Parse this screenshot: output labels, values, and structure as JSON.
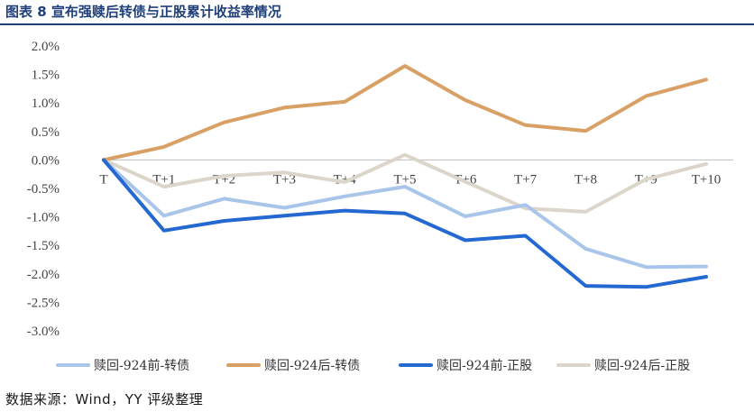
{
  "page": {
    "title": "图表 8 宣布强赎后转债与正股累计收益率情况",
    "source": "数据来源：Wind，YY 评级整理"
  },
  "chart_data": {
    "type": "line",
    "title": "",
    "xlabel": "",
    "ylabel": "",
    "categories": [
      "T",
      "T+1",
      "T+2",
      "T+3",
      "T+4",
      "T+5",
      "T+6",
      "T+7",
      "T+8",
      "T+9",
      "T+10"
    ],
    "y_ticks": [
      "2.0%",
      "1.5%",
      "1.0%",
      "0.5%",
      "0.0%",
      "-0.5%",
      "-1.0%",
      "-1.5%",
      "-2.0%",
      "-2.5%",
      "-3.0%"
    ],
    "ylim": [
      -3.0,
      2.0
    ],
    "y_unit": "%",
    "grid": false,
    "legend_position": "bottom",
    "series": [
      {
        "name": "赎回-924前-转债",
        "color": "#a9c5ea",
        "values": [
          0,
          -0.98,
          -0.68,
          -0.84,
          -0.64,
          -0.47,
          -0.99,
          -0.79,
          -1.56,
          -1.88,
          -1.87
        ]
      },
      {
        "name": "赎回-924后-转债",
        "color": "#d9a066",
        "values": [
          0,
          0.23,
          0.66,
          0.92,
          1.02,
          1.65,
          1.05,
          0.61,
          0.51,
          1.12,
          1.41
        ]
      },
      {
        "name": "赎回-924前-正股",
        "color": "#2469d1",
        "values": [
          0,
          -1.24,
          -1.07,
          -0.98,
          -0.89,
          -0.94,
          -1.41,
          -1.33,
          -2.21,
          -2.23,
          -2.05
        ]
      },
      {
        "name": "赎回-924后-正股",
        "color": "#dcd5cc",
        "values": [
          0,
          -0.47,
          -0.28,
          -0.22,
          -0.39,
          0.09,
          -0.38,
          -0.85,
          -0.91,
          -0.34,
          -0.07
        ]
      }
    ]
  }
}
